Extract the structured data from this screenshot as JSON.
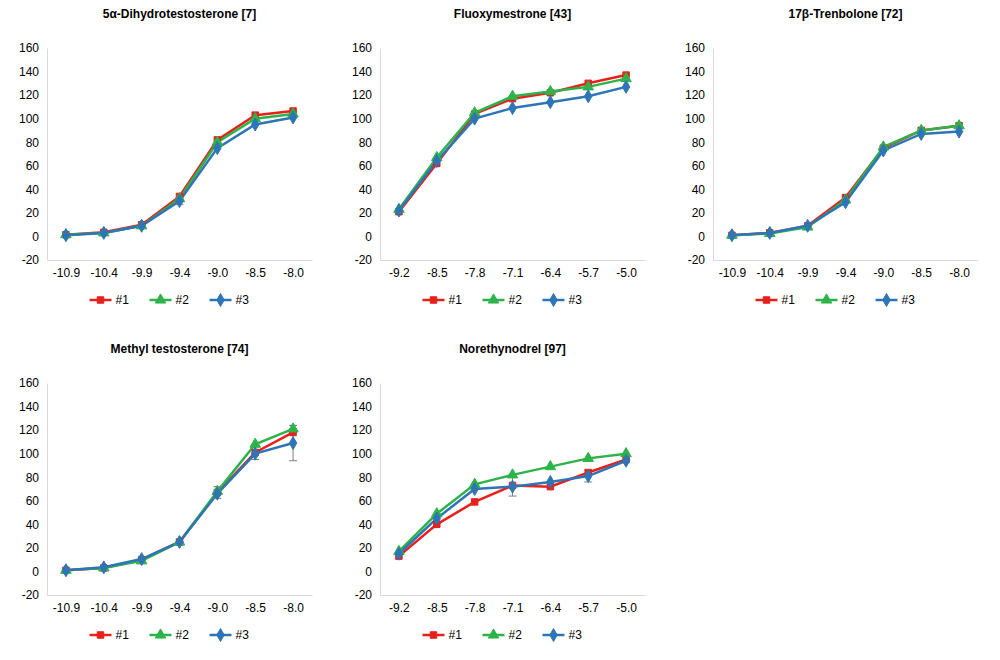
{
  "chart_data": [
    {
      "type": "line",
      "title": "5α-Dihydrotestosterone [7]",
      "categories": [
        "-10.9",
        "-10.4",
        "-9.9",
        "-9.4",
        "-9.0",
        "-8.5",
        "-8.0"
      ],
      "ylim": [
        -20,
        160
      ],
      "yticks": [
        -20,
        0,
        20,
        40,
        60,
        80,
        100,
        120,
        140,
        160
      ],
      "legend": "bottom",
      "series": [
        {
          "name": "#1",
          "color": "#e8201c",
          "marker": "square",
          "values": [
            1.5,
            3.5,
            10,
            34,
            82,
            103,
            106.5
          ],
          "errors": [
            null,
            null,
            null,
            null,
            null,
            null,
            null
          ]
        },
        {
          "name": "#2",
          "color": "#2db34a",
          "marker": "triangle",
          "values": [
            1.5,
            3,
            9,
            32,
            80,
            100,
            104
          ],
          "errors": [
            null,
            null,
            null,
            null,
            null,
            null,
            null
          ]
        },
        {
          "name": "#3",
          "color": "#2e75b6",
          "marker": "diamond",
          "values": [
            1,
            3,
            9,
            30,
            75,
            95,
            101
          ],
          "errors": [
            null,
            null,
            null,
            3,
            null,
            null,
            null
          ]
        }
      ]
    },
    {
      "type": "line",
      "title": "Fluoxymestrone [43]",
      "categories": [
        "-9.2",
        "-8.5",
        "-7.8",
        "-7.1",
        "-6.4",
        "-5.7",
        "-5.0"
      ],
      "ylim": [
        -20,
        160
      ],
      "yticks": [
        -20,
        0,
        20,
        40,
        60,
        80,
        100,
        120,
        140,
        160
      ],
      "legend": "bottom",
      "series": [
        {
          "name": "#1",
          "color": "#e8201c",
          "marker": "square",
          "values": [
            21,
            62,
            104,
            117,
            122,
            130,
            137
          ],
          "errors": [
            null,
            null,
            null,
            null,
            null,
            null,
            null
          ]
        },
        {
          "name": "#2",
          "color": "#2db34a",
          "marker": "triangle",
          "values": [
            23,
            67,
            105,
            119,
            123,
            127,
            134
          ],
          "errors": [
            null,
            null,
            null,
            null,
            null,
            null,
            null
          ]
        },
        {
          "name": "#3",
          "color": "#2e75b6",
          "marker": "diamond",
          "values": [
            22,
            64,
            100,
            109,
            114,
            119,
            127
          ],
          "errors": [
            null,
            null,
            null,
            null,
            null,
            null,
            null
          ]
        }
      ]
    },
    {
      "type": "line",
      "title": "17β-Trenbolone [72]",
      "categories": [
        "-10.9",
        "-10.4",
        "-9.9",
        "-9.4",
        "-9.0",
        "-8.5",
        "-8.0"
      ],
      "ylim": [
        -20,
        160
      ],
      "yticks": [
        -20,
        0,
        20,
        40,
        60,
        80,
        100,
        120,
        140,
        160
      ],
      "legend": "bottom",
      "series": [
        {
          "name": "#1",
          "color": "#e8201c",
          "marker": "square",
          "values": [
            1,
            3,
            9,
            33,
            75,
            90,
            94
          ],
          "errors": [
            null,
            null,
            null,
            null,
            null,
            null,
            null
          ]
        },
        {
          "name": "#2",
          "color": "#2db34a",
          "marker": "triangle",
          "values": [
            1,
            2.5,
            8,
            31,
            76,
            90,
            94
          ],
          "errors": [
            null,
            null,
            null,
            null,
            null,
            null,
            null
          ]
        },
        {
          "name": "#3",
          "color": "#2e75b6",
          "marker": "diamond",
          "values": [
            1,
            3,
            9,
            29,
            73,
            87,
            89
          ],
          "errors": [
            null,
            null,
            null,
            null,
            null,
            null,
            null
          ]
        }
      ]
    },
    {
      "type": "line",
      "title": "Methyl testosterone [74]",
      "categories": [
        "-10.9",
        "-10.4",
        "-9.9",
        "-9.4",
        "-9.0",
        "-8.5",
        "-8.0"
      ],
      "ylim": [
        -20,
        160
      ],
      "yticks": [
        -20,
        0,
        20,
        40,
        60,
        80,
        100,
        120,
        140,
        160
      ],
      "legend": "bottom",
      "series": [
        {
          "name": "#1",
          "color": "#e8201c",
          "marker": "square",
          "values": [
            1,
            3,
            10,
            25,
            67,
            101,
            118
          ],
          "errors": [
            null,
            null,
            null,
            null,
            5,
            6,
            null
          ]
        },
        {
          "name": "#2",
          "color": "#2db34a",
          "marker": "triangle",
          "values": [
            1,
            3,
            9,
            25,
            68,
            108,
            121
          ],
          "errors": [
            null,
            null,
            null,
            null,
            null,
            null,
            3
          ]
        },
        {
          "name": "#3",
          "color": "#2e75b6",
          "marker": "diamond",
          "values": [
            1,
            3.5,
            10.5,
            25,
            66,
            100,
            109
          ],
          "errors": [
            null,
            null,
            null,
            null,
            null,
            null,
            15
          ]
        }
      ]
    },
    {
      "type": "line",
      "title": "Norethynodrel [97]",
      "categories": [
        "-9.2",
        "-8.5",
        "-7.8",
        "-7.1",
        "-6.4",
        "-5.7",
        "-5.0"
      ],
      "ylim": [
        -20,
        160
      ],
      "yticks": [
        -20,
        0,
        20,
        40,
        60,
        80,
        100,
        120,
        140,
        160
      ],
      "legend": "bottom",
      "series": [
        {
          "name": "#1",
          "color": "#e8201c",
          "marker": "square",
          "values": [
            13,
            40,
            59,
            73,
            72,
            84,
            95
          ],
          "errors": [
            null,
            null,
            null,
            null,
            null,
            null,
            null
          ]
        },
        {
          "name": "#2",
          "color": "#2db34a",
          "marker": "triangle",
          "values": [
            17,
            49,
            74,
            82,
            89,
            96,
            100
          ],
          "errors": [
            null,
            null,
            null,
            null,
            null,
            null,
            null
          ]
        },
        {
          "name": "#3",
          "color": "#2e75b6",
          "marker": "diamond",
          "values": [
            15,
            45,
            70,
            72,
            76,
            81,
            94
          ],
          "errors": [
            null,
            null,
            null,
            8,
            null,
            5,
            null
          ]
        }
      ]
    }
  ]
}
